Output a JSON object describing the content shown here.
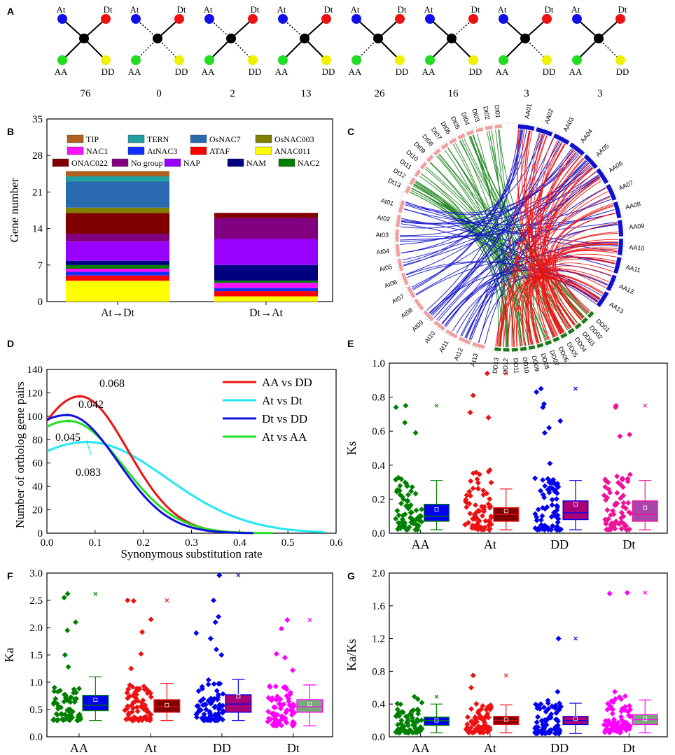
{
  "panels": {
    "a": "A",
    "b": "B",
    "c": "C",
    "d": "D",
    "e": "E",
    "f": "F",
    "g": "G"
  },
  "topology": {
    "node_labels": {
      "at": "At",
      "dt": "Dt",
      "aa": "AA",
      "dd": "DD"
    },
    "node_colors": {
      "at": "#1010e8",
      "dt": "#ee1111",
      "aa": "#22dd22",
      "dd": "#f0f000",
      "center": "#000000"
    },
    "patterns": [
      {
        "count": "76",
        "dotted": []
      },
      {
        "count": "0",
        "dotted": [
          "at",
          "aa",
          "dd"
        ]
      },
      {
        "count": "2",
        "dotted": [
          "at",
          "dd"
        ]
      },
      {
        "count": "13",
        "dotted": [
          "at"
        ]
      },
      {
        "count": "26",
        "dotted": [
          "aa"
        ]
      },
      {
        "count": "16",
        "dotted": [
          "dt"
        ]
      },
      {
        "count": "3",
        "dotted": [
          "dd"
        ]
      },
      {
        "count": "3",
        "dotted": [
          "dd"
        ]
      }
    ]
  },
  "chart_data": [
    {
      "panel": "B",
      "type": "bar",
      "stacked": true,
      "ylabel": "Gene number",
      "ylim": [
        0,
        35
      ],
      "yticks": [
        "0",
        "7",
        "14",
        "21",
        "28",
        "35"
      ],
      "categories": [
        "At→Dt",
        "Dt→At"
      ],
      "series": [
        {
          "name": "ANAC011",
          "color": "#ffff00",
          "values": [
            4,
            1
          ]
        },
        {
          "name": "ATAF",
          "color": "#ff0000",
          "values": [
            1,
            1
          ]
        },
        {
          "name": "AtNAC3",
          "color": "#1030ff",
          "values": [
            0.7,
            0.6
          ]
        },
        {
          "name": "NAC1",
          "color": "#ff10ff",
          "values": [
            0.6,
            1
          ]
        },
        {
          "name": "NAC2",
          "color": "#008000",
          "values": [
            0.7,
            0.4
          ]
        },
        {
          "name": "NAM",
          "color": "#000080",
          "values": [
            0.8,
            3
          ]
        },
        {
          "name": "NAP",
          "color": "#9900ff",
          "values": [
            3.7,
            5
          ]
        },
        {
          "name": "No group",
          "color": "#800080",
          "values": [
            1.5,
            4
          ]
        },
        {
          "name": "ONAC022",
          "color": "#800000",
          "values": [
            4,
            1
          ]
        },
        {
          "name": "OsNAC003",
          "color": "#808000",
          "values": [
            1,
            0
          ]
        },
        {
          "name": "OsNAC7",
          "color": "#2a6ab0",
          "values": [
            5,
            0
          ]
        },
        {
          "name": "TERN",
          "color": "#20a0a0",
          "values": [
            1,
            0
          ]
        },
        {
          "name": "TIP",
          "color": "#b06020",
          "values": [
            1,
            0
          ]
        }
      ],
      "legend_rows": [
        [
          "TIP",
          "TERN",
          "OsNAC7",
          "OsNAC003"
        ],
        [
          "NAC1",
          "AtNAC3",
          "ATAF",
          "ANAC011"
        ],
        [
          "ONAC022",
          "No group",
          "NAP",
          "NAM",
          "NAC2"
        ]
      ]
    },
    {
      "panel": "C",
      "type": "circos",
      "chromosomes_right": [
        "AA01",
        "AA02",
        "AA03",
        "AA04",
        "AA05",
        "AA06",
        "AA07",
        "AA08",
        "AA09",
        "AA10",
        "AA11",
        "AA12",
        "AA13"
      ],
      "chromosomes_bottom": [
        "DD01",
        "DD02",
        "DD03",
        "DD04",
        "DD05",
        "DD06",
        "DD07",
        "DD08",
        "DD09",
        "DD10",
        "DD11",
        "DD12",
        "DD13"
      ],
      "chromosomes_left_at": [
        "At01",
        "At02",
        "At03",
        "At04",
        "At05",
        "At06",
        "At07",
        "At08",
        "At09",
        "At10",
        "At11",
        "At12",
        "At13"
      ],
      "chromosomes_top_dt": [
        "Dt01",
        "Dt02",
        "Dt03",
        "Dt04",
        "Dt05",
        "Dt06",
        "Dt07",
        "Dt08",
        "Dt09",
        "Dt10",
        "Dt11",
        "Dt12",
        "Dt13"
      ],
      "link_colors": {
        "aa_dd": "#ee1111",
        "at_aa": "#1111cc",
        "dt_dd": "#228822"
      }
    },
    {
      "panel": "D",
      "type": "line",
      "xlabel": "Synonymous substitution rate",
      "ylabel": "Number of ortholog gene pairs",
      "xlim": [
        0,
        0.6
      ],
      "ylim": [
        0,
        140
      ],
      "xticks": [
        "0.0",
        "0.1",
        "0.2",
        "0.3",
        "0.4",
        "0.5",
        "0.6"
      ],
      "yticks": [
        "0",
        "20",
        "40",
        "60",
        "80",
        "100",
        "120",
        "140"
      ],
      "series": [
        {
          "name": "AA vs DD",
          "color": "#ee1111",
          "peak_x": 0.068,
          "peak_y": 117,
          "y0": 96,
          "sigma": 0.1,
          "xend": 0.43,
          "peak_label": "0.068"
        },
        {
          "name": "At vs Dt",
          "color": "#22e8f0",
          "peak_x": 0.083,
          "peak_y": 78,
          "y0": 70,
          "sigma": 0.165,
          "xend": 0.58,
          "peak_label": "0.083"
        },
        {
          "name": "Dt vs DD",
          "color": "#1010dd",
          "peak_x": 0.042,
          "peak_y": 101,
          "y0": 97,
          "sigma": 0.105,
          "xend": 0.43,
          "peak_label": "0.042"
        },
        {
          "name": "At vs AA",
          "color": "#22dd22",
          "peak_x": 0.045,
          "peak_y": 96,
          "y0": 91,
          "sigma": 0.112,
          "xend": 0.47,
          "peak_label": "0.045"
        }
      ]
    },
    {
      "panel": "E",
      "type": "scatter",
      "subtype": "scatter+box",
      "ylabel": "Ks",
      "ylim": [
        0,
        1.0
      ],
      "yticks": [
        "0.0",
        "0.2",
        "0.4",
        "0.6",
        "0.8",
        "1.0"
      ],
      "categories": [
        "AA",
        "At",
        "DD",
        "Dt"
      ],
      "groups": [
        {
          "name": "AA",
          "point_color": "#008000",
          "box_fill": "#0000ee",
          "box_edge": "#008000",
          "q1": 0.07,
          "median": 0.1,
          "q3": 0.17,
          "mean": 0.14,
          "wlo": 0.02,
          "whi": 0.31,
          "max": 0.75,
          "outliers": [
            0.75,
            0.74,
            0.65,
            0.59
          ],
          "dense_max": 0.33
        },
        {
          "name": "At",
          "point_color": "#ee1111",
          "box_fill": "#800000",
          "box_edge": "#ee1111",
          "q1": 0.07,
          "median": 0.11,
          "q3": 0.15,
          "mean": 0.13,
          "wlo": 0.02,
          "whi": 0.26,
          "max": 0.94,
          "outliers": [
            0.94,
            0.81,
            0.71,
            0.68
          ],
          "dense_max": 0.38
        },
        {
          "name": "DD",
          "point_color": "#0000ee",
          "box_fill": "#aa0077",
          "box_edge": "#0000ee",
          "q1": 0.08,
          "median": 0.12,
          "q3": 0.19,
          "mean": 0.17,
          "wlo": 0.02,
          "whi": 0.31,
          "max": 0.85,
          "outliers": [
            0.85,
            0.83,
            0.76,
            0.74,
            0.66,
            0.62,
            0.59,
            0.41
          ],
          "dense_max": 0.33
        },
        {
          "name": "Dt",
          "point_color": "#ee1199",
          "box_fill": "#aa44aa",
          "box_edge": "#ee1199",
          "q1": 0.07,
          "median": 0.11,
          "q3": 0.19,
          "mean": 0.15,
          "wlo": 0.02,
          "whi": 0.31,
          "max": 0.75,
          "outliers": [
            0.75,
            0.74,
            0.58,
            0.57
          ],
          "dense_max": 0.35
        }
      ]
    },
    {
      "panel": "F",
      "type": "scatter",
      "subtype": "scatter+box",
      "ylabel": "Ka",
      "ylim": [
        0,
        3.0
      ],
      "yticks": [
        "0.0",
        "0.5",
        "1.0",
        "1.5",
        "2.0",
        "2.5",
        "3.0"
      ],
      "categories": [
        "AA",
        "At",
        "DD",
        "Dt"
      ],
      "groups": [
        {
          "name": "AA",
          "point_color": "#008000",
          "box_fill": "#0000ee",
          "box_edge": "#008000",
          "q1": 0.48,
          "median": 0.58,
          "q3": 0.76,
          "mean": 0.68,
          "wlo": 0.3,
          "whi": 1.1,
          "max": 2.62,
          "outliers": [
            2.62,
            2.55,
            2.1,
            1.95,
            1.5,
            1.28
          ],
          "dense_max": 0.98
        },
        {
          "name": "At",
          "point_color": "#ee1111",
          "box_fill": "#800000",
          "box_edge": "#ee1111",
          "q1": 0.45,
          "median": 0.55,
          "q3": 0.68,
          "mean": 0.58,
          "wlo": 0.3,
          "whi": 0.98,
          "max": 2.5,
          "outliers": [
            2.5,
            2.49,
            2.15,
            1.92,
            1.52,
            1.25
          ],
          "dense_max": 0.95
        },
        {
          "name": "DD",
          "point_color": "#0000ee",
          "box_fill": "#aa0077",
          "box_edge": "#0000ee",
          "q1": 0.45,
          "median": 0.6,
          "q3": 0.77,
          "mean": 0.74,
          "wlo": 0.3,
          "whi": 1.05,
          "max": 2.96,
          "outliers": [
            2.96,
            2.5,
            2.2,
            2.1,
            1.9,
            1.8,
            1.6,
            1.5
          ],
          "dense_max": 1.05
        },
        {
          "name": "Dt",
          "point_color": "#ff00ff",
          "box_fill": "#77aa77",
          "box_edge": "#ff00ff",
          "q1": 0.45,
          "median": 0.55,
          "q3": 0.68,
          "mean": 0.6,
          "wlo": 0.2,
          "whi": 0.95,
          "max": 2.14,
          "outliers": [
            2.14,
            1.98,
            1.52,
            1.45,
            1.22
          ],
          "dense_max": 0.95
        }
      ]
    },
    {
      "panel": "G",
      "type": "scatter",
      "subtype": "scatter+box",
      "ylabel": "Ka/Ks",
      "ylim": [
        0,
        2.0
      ],
      "yticks": [
        "0.0",
        "0.4",
        "0.8",
        "1.2",
        "1.6",
        "2.0"
      ],
      "categories": [
        "AA",
        "At",
        "DD",
        "Dt"
      ],
      "groups": [
        {
          "name": "AA",
          "point_color": "#008000",
          "box_fill": "#0000ee",
          "box_edge": "#008000",
          "q1": 0.14,
          "median": 0.2,
          "q3": 0.24,
          "mean": 0.2,
          "wlo": 0.05,
          "whi": 0.4,
          "max": 0.49,
          "outliers": [
            0.49,
            0.46
          ],
          "dense_max": 0.42
        },
        {
          "name": "At",
          "point_color": "#ee1111",
          "box_fill": "#800000",
          "box_edge": "#ee1111",
          "q1": 0.15,
          "median": 0.2,
          "q3": 0.25,
          "mean": 0.21,
          "wlo": 0.05,
          "whi": 0.39,
          "max": 0.75,
          "outliers": [
            0.75,
            0.6
          ],
          "dense_max": 0.42
        },
        {
          "name": "DD",
          "point_color": "#0000ee",
          "box_fill": "#aa0077",
          "box_edge": "#0000ee",
          "q1": 0.15,
          "median": 0.2,
          "q3": 0.25,
          "mean": 0.22,
          "wlo": 0.04,
          "whi": 0.41,
          "max": 1.2,
          "outliers": [
            1.2,
            0.55
          ],
          "dense_max": 0.45
        },
        {
          "name": "Dt",
          "point_color": "#ff00ff",
          "box_fill": "#77aa77",
          "box_edge": "#ff00ff",
          "q1": 0.15,
          "median": 0.21,
          "q3": 0.27,
          "mean": 0.22,
          "wlo": 0.05,
          "whi": 0.45,
          "max": 1.76,
          "outliers": [
            1.76,
            1.75,
            0.55
          ],
          "dense_max": 0.5
        }
      ]
    }
  ]
}
